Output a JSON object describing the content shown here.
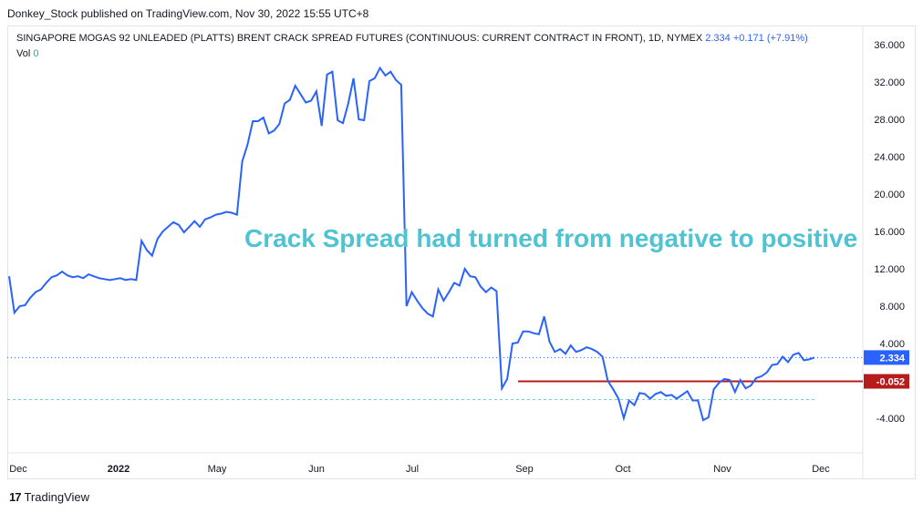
{
  "header": {
    "publisher_line": "Donkey_Stock published on TradingView.com, Nov 30, 2022 15:55 UTC+8"
  },
  "legend": {
    "symbol": "SINGAPORE MOGAS 92 UNLEADED (PLATTS) BRENT CRACK SPREAD FUTURES (CONTINUOUS: CURRENT CONTRACT IN FRONT), 1D, NYMEX",
    "last": "2.334",
    "change": "+0.171 (+7.91%)",
    "vol_label": "Vol",
    "vol_value": "0"
  },
  "annotation": "Crack Spread had turned from negative to positive",
  "footer": {
    "brand": "TradingView",
    "logo": "17"
  },
  "colors": {
    "line": "#2962ff",
    "annotation": "#4fc3d1",
    "level": "#b71c1c",
    "price_label": "#2962ff",
    "dashed": "#80cbc4"
  },
  "chart_data": {
    "type": "line",
    "title": "",
    "xlabel": "",
    "ylabel": "",
    "ylim": [
      -7,
      37
    ],
    "y_ticks": [
      "36.000",
      "32.000",
      "28.000",
      "24.000",
      "20.000",
      "16.000",
      "12.000",
      "8.000",
      "4.000",
      "-4.000"
    ],
    "x_ticks": [
      "Dec",
      "2022",
      "May",
      "Jun",
      "Jul",
      "Sep",
      "Oct",
      "Nov",
      "Dec"
    ],
    "last_price_label": "2.334",
    "level_label": "-0.052",
    "level_value": -0.052,
    "dashed_level": -2.0,
    "grid": false,
    "series": [
      {
        "values": [
          11.2,
          7.3,
          8.0,
          8.1,
          8.9,
          9.5,
          9.8,
          10.5,
          11.1,
          11.3,
          11.7,
          11.3,
          11.1,
          11.2,
          11.0,
          11.4,
          11.2,
          11.0,
          10.9,
          10.8,
          10.9,
          11.0,
          10.8,
          10.9,
          10.8,
          15.0,
          14.0,
          13.4,
          15.2,
          16.0,
          16.5,
          17.0,
          16.7,
          15.9,
          16.5,
          17.1,
          16.5,
          17.3,
          17.5,
          17.8,
          17.9,
          18.1,
          18.0,
          17.8,
          23.5,
          25.3,
          27.8,
          27.8,
          28.2,
          26.5,
          26.8,
          27.5,
          29.7,
          30.1,
          31.6,
          30.7,
          29.8,
          30.0,
          31.0,
          27.3,
          32.8,
          33.1,
          27.9,
          27.6,
          29.7,
          32.4,
          28.0,
          27.9,
          32.1,
          32.4,
          33.5,
          32.7,
          33.1,
          32.2,
          31.7,
          8.0,
          9.5,
          8.6,
          7.8,
          7.2,
          6.9,
          9.8,
          8.6,
          9.5,
          10.5,
          10.2,
          12.0,
          11.2,
          11.1,
          10.1,
          9.5,
          10.0,
          9.6,
          -0.8,
          0.2,
          4.0,
          4.1,
          5.3,
          5.3,
          5.1,
          5.0,
          6.9,
          4.2,
          3.1,
          3.4,
          2.9,
          3.8,
          3.1,
          3.3,
          3.6,
          3.4,
          3.1,
          2.6,
          0.0,
          -0.9,
          -1.9,
          -4.0,
          -2.1,
          -2.6,
          -1.3,
          -1.4,
          -1.9,
          -1.4,
          -1.2,
          -1.6,
          -1.5,
          -1.9,
          -1.5,
          -1.1,
          -2.1,
          -2.1,
          -4.2,
          -3.9,
          -0.9,
          -0.2,
          0.2,
          0.1,
          -1.2,
          0.1,
          -0.8,
          -0.5,
          0.3,
          0.5,
          0.9,
          1.7,
          1.8,
          2.6,
          2.0,
          2.8,
          3.0,
          2.2,
          2.3,
          2.5
        ]
      }
    ]
  }
}
